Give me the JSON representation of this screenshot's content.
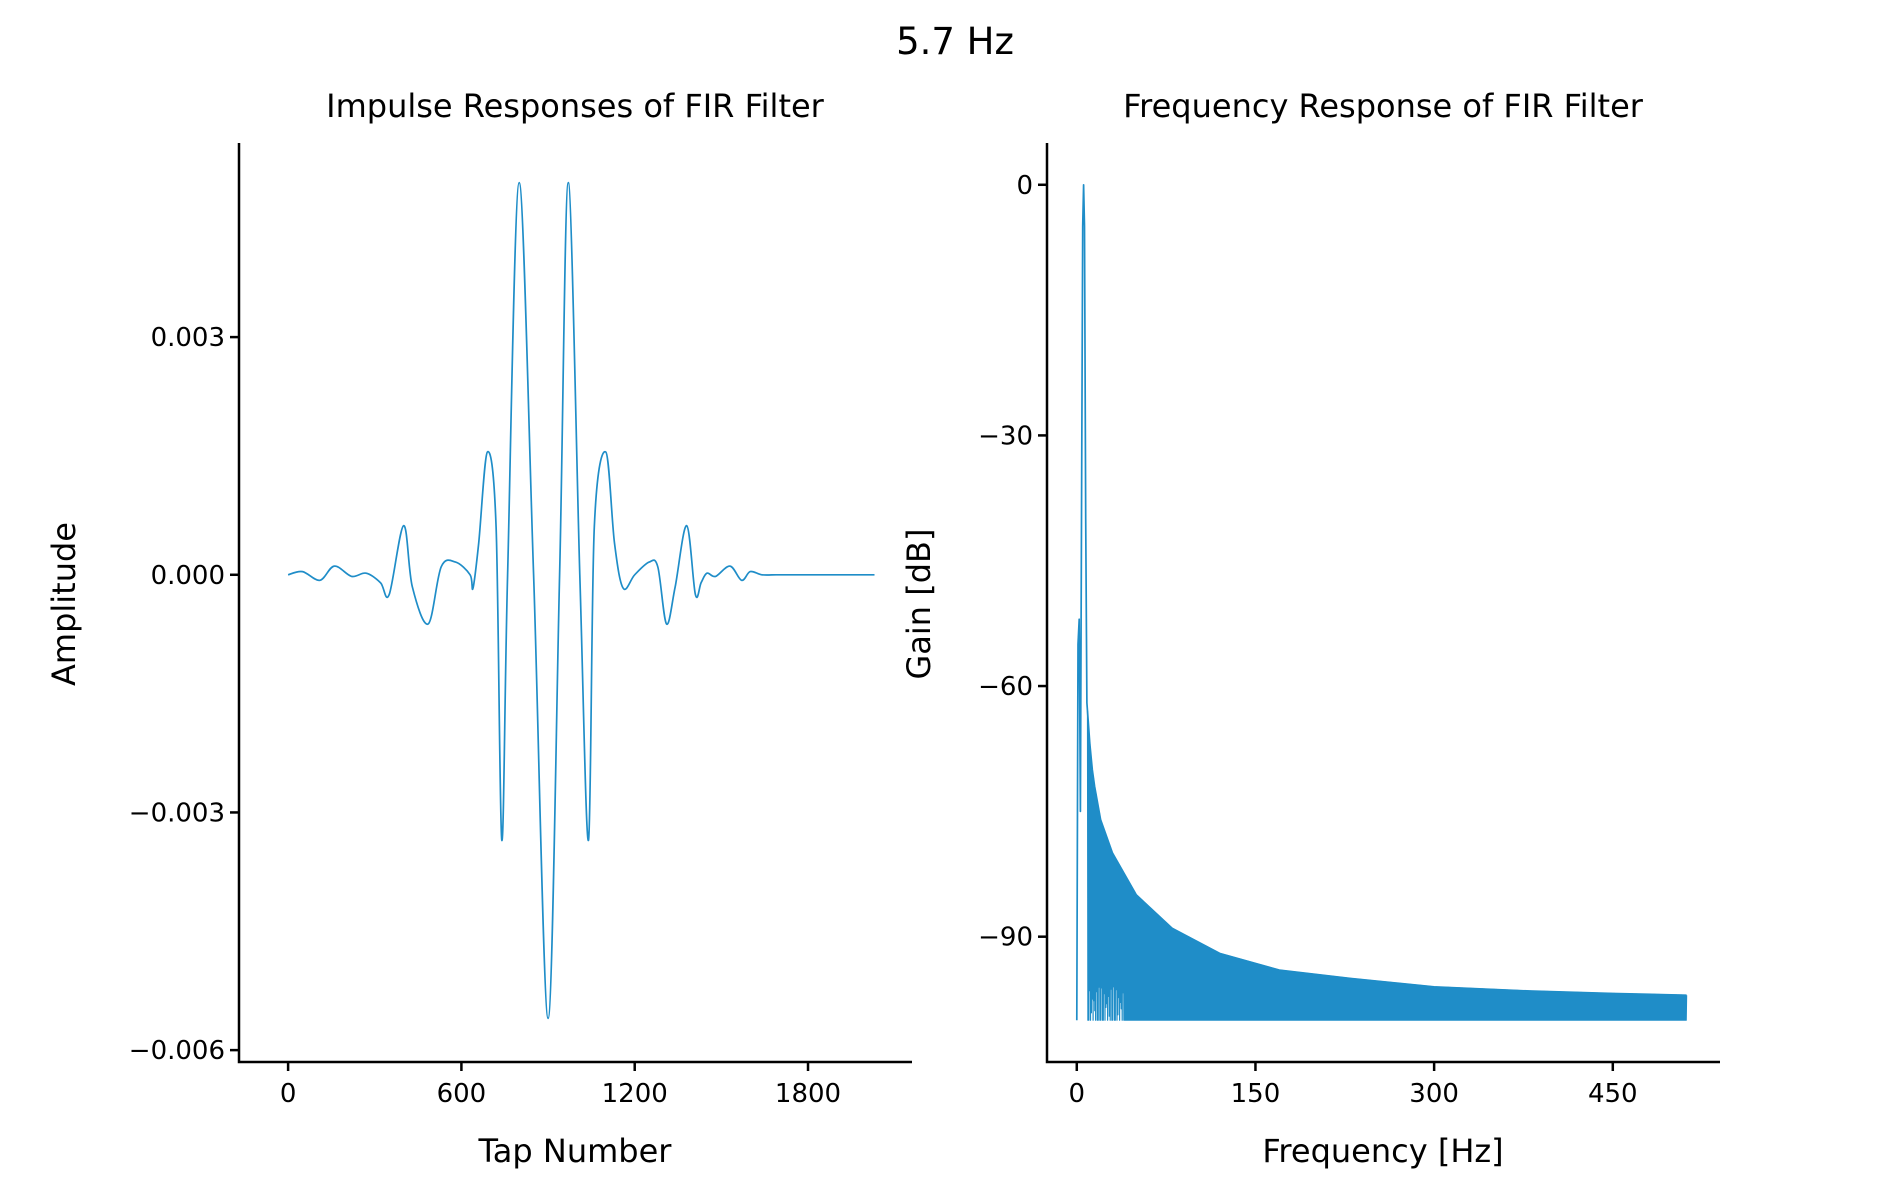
{
  "figure": {
    "suptitle": "5.7 Hz",
    "line_color": "#1f8dc8"
  },
  "chart_data": [
    {
      "type": "line",
      "title": "Impulse Responses of FIR Filter",
      "xlabel": "Tap Number",
      "ylabel": "Amplitude",
      "xlim": [
        -170,
        2160
      ],
      "ylim": [
        -0.00615,
        0.00545
      ],
      "xticks": [
        0,
        600,
        1200,
        1800
      ],
      "xtick_labels": [
        "0",
        "600",
        "1200",
        "1800"
      ],
      "yticks": [
        -0.006,
        -0.003,
        0.0,
        0.003
      ],
      "ytick_labels": [
        "−0.006",
        "−0.003",
        "0.000",
        "0.003"
      ],
      "grid": false,
      "series": [
        {
          "x": [
            0,
            50,
            110,
            160,
            220,
            270,
            320,
            350,
            400,
            430,
            485,
            530,
            580,
            630,
            640,
            660,
            690,
            720,
            740,
            760,
            800,
            850,
            900,
            940,
            970,
            1010,
            1040,
            1060,
            1100,
            1130,
            1160,
            1200,
            1250,
            1280,
            1310,
            1340,
            1380,
            1410,
            1430,
            1450,
            1480,
            1530,
            1570,
            1600,
            1640,
            1690,
            1730,
            1780,
            1830,
            1880,
            1920,
            1970,
            2030
          ],
          "y": [
            0.0,
            4e-05,
            -7e-05,
            0.00011,
            -2e-05,
            2e-05,
            -0.0001,
            -0.00025,
            0.00062,
            -0.00015,
            -0.00062,
            0.0001,
            0.00016,
            0.0,
            -0.00017,
            0.0004,
            0.00155,
            0.0006,
            -0.00335,
            0.0,
            0.00495,
            0.0,
            -0.0056,
            0.0,
            0.00495,
            0.0,
            -0.00335,
            0.0006,
            0.00155,
            0.0004,
            -0.00017,
            0.0,
            0.00016,
            0.0001,
            -0.00062,
            -0.00015,
            0.00062,
            -0.00025,
            -0.0001,
            2e-05,
            -2e-05,
            0.00011,
            -7e-05,
            4e-05,
            0.0,
            0.0,
            0.0,
            0.0,
            0.0,
            0.0,
            0.0,
            0.0,
            0.0
          ]
        }
      ]
    },
    {
      "type": "line",
      "title": "Frequency Response of FIR Filter",
      "xlabel": "Frequency [Hz]",
      "ylabel": "Gain [dB]",
      "xlim": [
        -25,
        540
      ],
      "ylim": [
        -105,
        5
      ],
      "xticks": [
        0,
        150,
        300,
        450
      ],
      "xtick_labels": [
        "0",
        "150",
        "300",
        "450"
      ],
      "yticks": [
        -90,
        -60,
        -30,
        0
      ],
      "ytick_labels": [
        "−90",
        "−60",
        "−30",
        "0"
      ],
      "grid": false,
      "series": [
        {
          "x": [
            0,
            1,
            2,
            3,
            4,
            5,
            5.7,
            6.5,
            7.5,
            8.5,
            9.5,
            11,
            13,
            15,
            20,
            30,
            50,
            80,
            120,
            170,
            230,
            300,
            380,
            450,
            512
          ],
          "y": [
            -100,
            -55,
            -52,
            -75,
            -40,
            -5,
            0,
            -5,
            -40,
            -62,
            -64,
            -67,
            -70,
            -72,
            -76,
            -80,
            -85,
            -89,
            -92,
            -94,
            -95,
            -96,
            -96.5,
            -96.8,
            -97
          ]
        }
      ]
    }
  ]
}
